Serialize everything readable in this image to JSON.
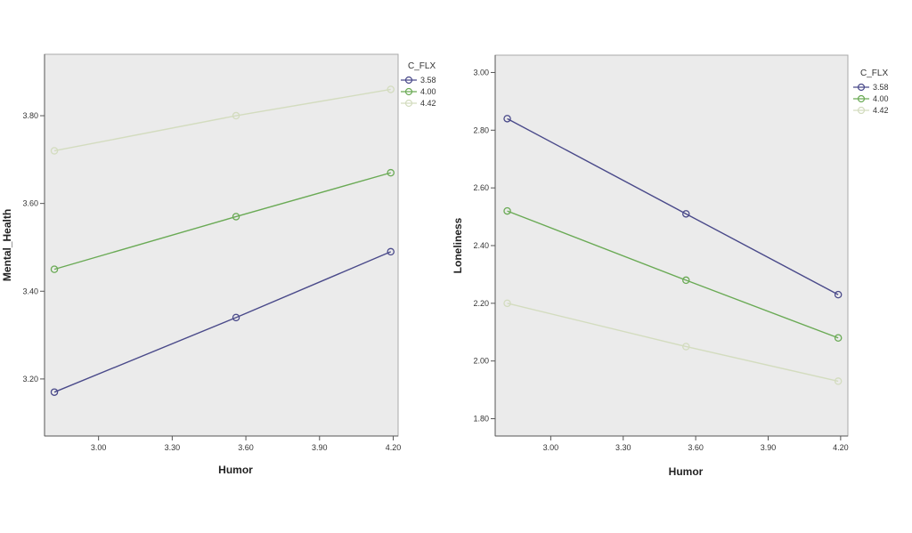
{
  "chart_data": [
    {
      "type": "line",
      "title": "",
      "xlabel": "Humor",
      "ylabel": "Mental_Health",
      "xlim": [
        2.78,
        4.22
      ],
      "ylim": [
        3.07,
        3.94
      ],
      "xticks": [
        3.0,
        3.3,
        3.6,
        3.9,
        4.2
      ],
      "yticks": [
        3.2,
        3.4,
        3.6,
        3.8
      ],
      "x": [
        2.82,
        3.56,
        4.19
      ],
      "legend_title": "C_FLX",
      "legend_position": "top-right",
      "grid": false,
      "series": [
        {
          "name": "3.58",
          "values": [
            3.17,
            3.34,
            3.49
          ],
          "color": "#4a4a8a"
        },
        {
          "name": "4.00",
          "values": [
            3.45,
            3.57,
            3.67
          ],
          "color": "#6aaa55"
        },
        {
          "name": "4.42",
          "values": [
            3.72,
            3.8,
            3.86
          ],
          "color": "#d3dcbf"
        }
      ]
    },
    {
      "type": "line",
      "title": "",
      "xlabel": "Humor",
      "ylabel": "Loneliness",
      "xlim": [
        2.77,
        4.23
      ],
      "ylim": [
        1.74,
        3.06
      ],
      "xticks": [
        3.0,
        3.3,
        3.6,
        3.9,
        4.2
      ],
      "yticks": [
        1.8,
        2.0,
        2.2,
        2.4,
        2.6,
        2.8,
        3.0
      ],
      "x": [
        2.82,
        3.56,
        4.19
      ],
      "legend_title": "C_FLX",
      "legend_position": "top-right",
      "grid": false,
      "series": [
        {
          "name": "3.58",
          "values": [
            2.84,
            2.51,
            2.23
          ],
          "color": "#4a4a8a"
        },
        {
          "name": "4.00",
          "values": [
            2.52,
            2.28,
            2.08
          ],
          "color": "#6aaa55"
        },
        {
          "name": "4.42",
          "values": [
            2.2,
            2.05,
            1.93
          ],
          "color": "#d3dcbf"
        }
      ]
    }
  ]
}
